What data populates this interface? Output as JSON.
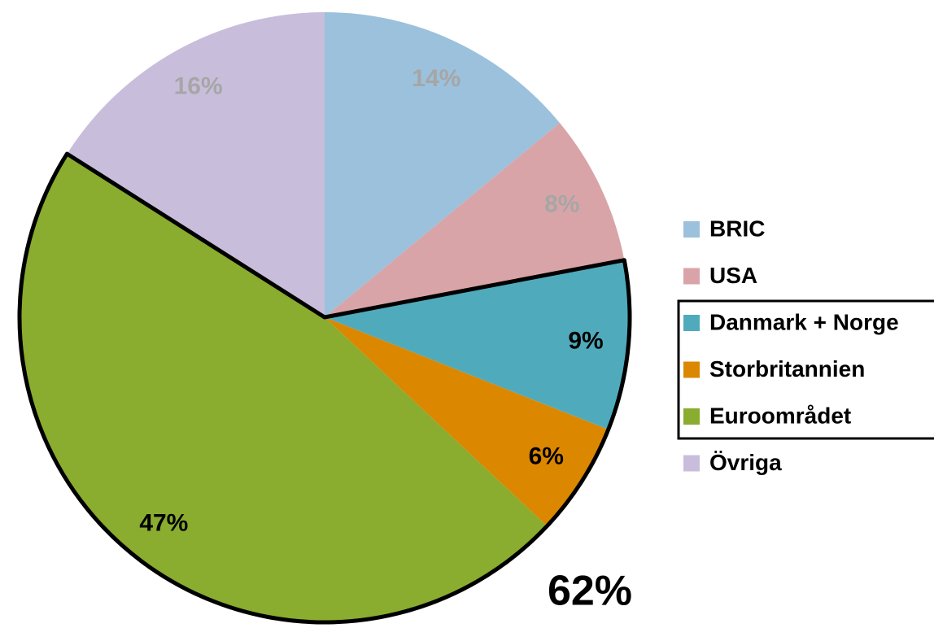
{
  "chart_data": {
    "type": "pie",
    "categories": [
      "BRIC",
      "USA",
      "Danmark + Norge",
      "Storbritannien",
      "Euroområdet",
      "Övriga"
    ],
    "values": [
      14,
      8,
      9,
      6,
      47,
      16
    ],
    "value_labels": [
      "14%",
      "8%",
      "9%",
      "6%",
      "47%",
      "16%"
    ],
    "colors": [
      "#9bc1dc",
      "#d9a4a8",
      "#4fabbc",
      "#db8700",
      "#8aac2f",
      "#c8bedb"
    ],
    "highlight": [
      2,
      3,
      4
    ],
    "annotation": "62%",
    "legend": "right"
  }
}
